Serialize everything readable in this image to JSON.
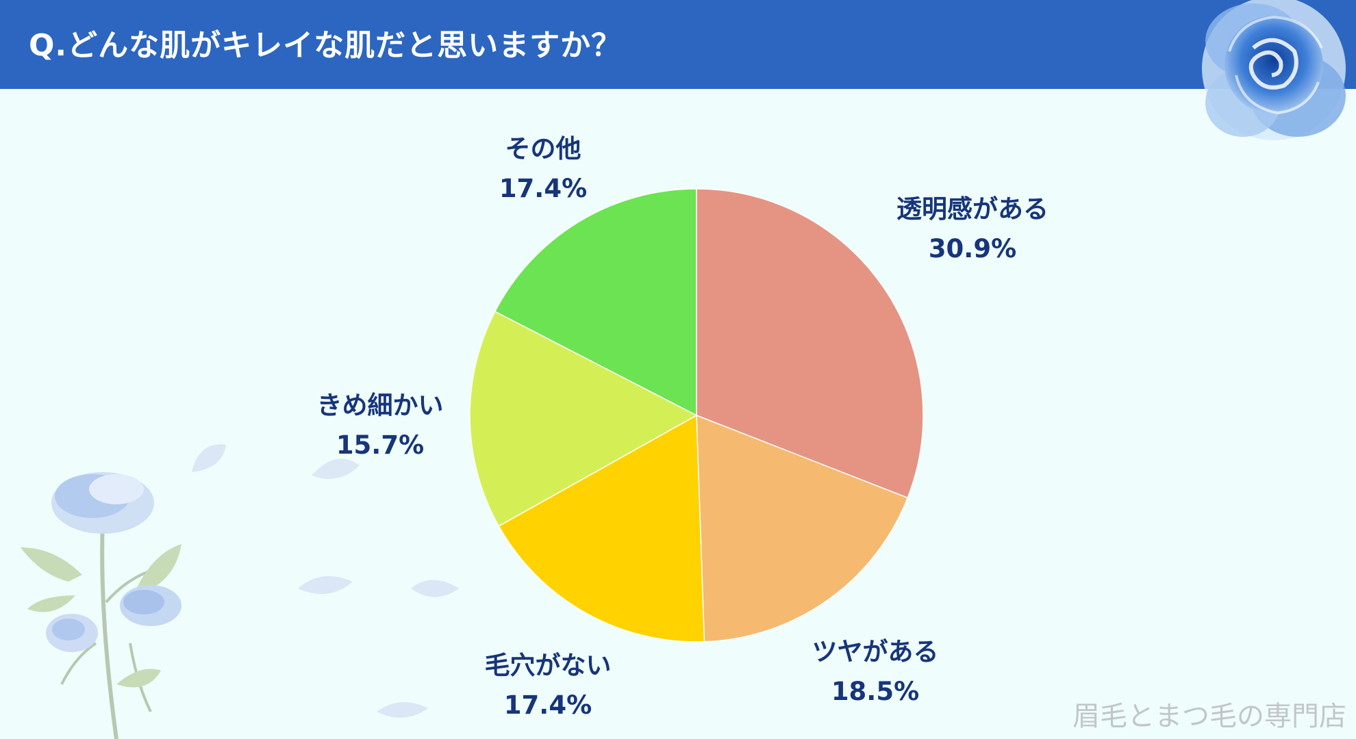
{
  "header": {
    "title": "Q.どんな肌がキレイな肌だと思いますか？",
    "color": "#2c66c0"
  },
  "chart_data": {
    "type": "pie",
    "title": "",
    "slices": [
      {
        "label": "透明感がある",
        "value": 30.9,
        "value_text": "30.9%",
        "color": "#e59483"
      },
      {
        "label": "ツヤがある",
        "value": 18.5,
        "value_text": "18.5%",
        "color": "#f6b970"
      },
      {
        "label": "毛穴がない",
        "value": 17.4,
        "value_text": "17.4%",
        "color": "#ffd200"
      },
      {
        "label": "きめ細かい",
        "value": 15.7,
        "value_text": "15.7%",
        "color": "#d4ef55"
      },
      {
        "label": "その他",
        "value": 17.4,
        "value_text": "17.4%",
        "color": "#6ce352"
      }
    ],
    "start": "12 o'clock",
    "direction": "clockwise",
    "label_color": "#17357a"
  },
  "watermark": "眉毛とまつ毛の専門店",
  "decorations": [
    "blue-rose-icon",
    "blue-rose-branch-icon",
    "petal-icon"
  ]
}
